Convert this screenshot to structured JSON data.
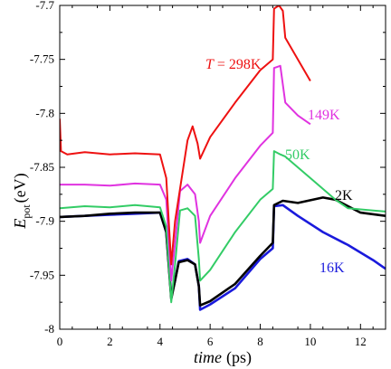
{
  "chart_data": {
    "type": "line",
    "xlabel_italic": "time",
    "xlabel_unit": "(ps)",
    "ylabel_main": "E",
    "ylabel_sub": "pot",
    "ylabel_unit": "(eV)",
    "xlim": [
      0,
      13
    ],
    "ylim": [
      -8.0,
      -7.7
    ],
    "x_ticks": [
      0,
      2,
      4,
      6,
      8,
      10,
      12
    ],
    "x_tick_labels": [
      "0",
      "2",
      "4",
      "6",
      "8",
      "10",
      "12"
    ],
    "y_ticks": [
      -7.7,
      -7.75,
      -7.8,
      -7.85,
      -7.9,
      -7.95,
      -8.0
    ],
    "y_tick_labels": [
      "-7.7",
      "-7.75",
      "-7.8",
      "-7.85",
      "-7.9",
      "-7.95",
      "-8"
    ],
    "grid": false,
    "series": [
      {
        "name": "16K",
        "label_text": "16K",
        "color": "#1a1adc",
        "x": [
          0,
          1,
          2,
          3,
          4,
          4.25,
          4.45,
          4.6,
          4.75,
          5.1,
          5.4,
          5.55,
          5.6,
          6,
          7,
          8,
          8.5,
          8.55,
          8.9,
          9.5,
          10.5,
          11.5,
          12.5,
          13
        ],
        "y": [
          -7.896,
          -7.895,
          -7.894,
          -7.893,
          -7.892,
          -7.91,
          -7.97,
          -7.955,
          -7.937,
          -7.935,
          -7.94,
          -7.96,
          -7.982,
          -7.977,
          -7.962,
          -7.935,
          -7.925,
          -7.886,
          -7.885,
          -7.895,
          -7.91,
          -7.922,
          -7.936,
          -7.944
        ]
      },
      {
        "name": "2K",
        "label_text": "2K",
        "color": "#000000",
        "x": [
          0,
          1,
          2,
          3,
          4,
          4.25,
          4.45,
          4.6,
          4.75,
          5.1,
          5.4,
          5.55,
          5.6,
          6,
          7,
          8,
          8.5,
          8.55,
          8.9,
          9.5,
          10.5,
          11,
          12,
          13
        ],
        "y": [
          -7.896,
          -7.895,
          -7.893,
          -7.892,
          -7.892,
          -7.91,
          -7.972,
          -7.955,
          -7.938,
          -7.936,
          -7.94,
          -7.96,
          -7.978,
          -7.974,
          -7.958,
          -7.932,
          -7.92,
          -7.885,
          -7.881,
          -7.883,
          -7.878,
          -7.88,
          -7.892,
          -7.895
        ]
      },
      {
        "name": "50K",
        "label_text": "50K",
        "color": "#33cc66",
        "x": [
          0,
          1,
          2,
          3,
          4,
          4.25,
          4.45,
          4.6,
          4.8,
          5.1,
          5.4,
          5.55,
          5.6,
          6,
          7,
          8,
          8.5,
          8.55,
          8.8,
          9,
          10,
          11,
          11.5,
          12.5,
          13
        ],
        "y": [
          -7.888,
          -7.886,
          -7.887,
          -7.885,
          -7.887,
          -7.905,
          -7.975,
          -7.94,
          -7.89,
          -7.888,
          -7.895,
          -7.935,
          -7.955,
          -7.945,
          -7.91,
          -7.88,
          -7.87,
          -7.835,
          -7.838,
          -7.84,
          -7.86,
          -7.88,
          -7.888,
          -7.89,
          -7.891
        ]
      },
      {
        "name": "149K",
        "label_text": "149K",
        "color": "#e033e0",
        "x": [
          0,
          1,
          2,
          3,
          4,
          4.25,
          4.45,
          4.6,
          4.8,
          5.1,
          5.4,
          5.55,
          5.6,
          6,
          7,
          8,
          8.5,
          8.55,
          8.8,
          9,
          9.5,
          10
        ],
        "y": [
          -7.866,
          -7.866,
          -7.867,
          -7.865,
          -7.866,
          -7.88,
          -7.955,
          -7.92,
          -7.872,
          -7.866,
          -7.875,
          -7.9,
          -7.92,
          -7.895,
          -7.86,
          -7.83,
          -7.818,
          -7.758,
          -7.756,
          -7.79,
          -7.802,
          -7.81
        ]
      },
      {
        "name": "T = 298K",
        "label_italic": "T",
        "label_text": " = 298K",
        "color": "#ee1111",
        "x": [
          0,
          0.05,
          0.3,
          1,
          2,
          3,
          4,
          4.25,
          4.45,
          4.6,
          4.8,
          5.1,
          5.3,
          5.5,
          5.6,
          6,
          7,
          8,
          8.5,
          8.55,
          8.75,
          8.9,
          9,
          9.5,
          10
        ],
        "y": [
          -7.805,
          -7.835,
          -7.838,
          -7.836,
          -7.838,
          -7.837,
          -7.838,
          -7.86,
          -7.94,
          -7.9,
          -7.87,
          -7.825,
          -7.812,
          -7.828,
          -7.842,
          -7.822,
          -7.79,
          -7.76,
          -7.75,
          -7.703,
          -7.7,
          -7.705,
          -7.73,
          -7.75,
          -7.77
        ]
      }
    ]
  }
}
